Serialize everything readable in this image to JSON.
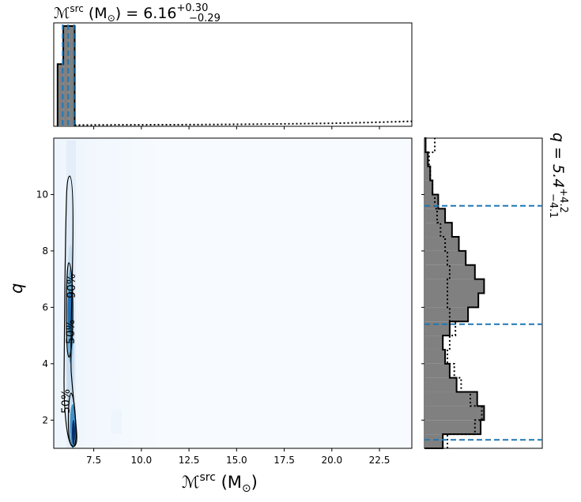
{
  "chart_data": {
    "type": "corner-plot",
    "title_top": {
      "symbol": "ℳ",
      "sup": "src",
      "text": " (M",
      "sub": "⊙",
      "text2": ") = 6.16",
      "sup_err": "+0.30",
      "sub_err": "−0.29"
    },
    "title_right": {
      "text": "q = 5.4",
      "sup_err": "+4.2",
      "sub_err": "−4.1"
    },
    "xlabel": {
      "symbol": "ℳ",
      "sup": "src",
      "text": " (M",
      "sub": "⊙",
      "text2": ")"
    },
    "ylabel": "q",
    "xlim": [
      5.4,
      24.2
    ],
    "ylim": [
      1.0,
      12.0
    ],
    "xticks": [
      {
        "value": 7.5,
        "label": "7.5"
      },
      {
        "value": 10.0,
        "label": "10.0"
      },
      {
        "value": 12.5,
        "label": "12.5"
      },
      {
        "value": 15.0,
        "label": "15.0"
      },
      {
        "value": 17.5,
        "label": "17.5"
      },
      {
        "value": 20.0,
        "label": "20.0"
      },
      {
        "value": 22.5,
        "label": "22.5"
      }
    ],
    "yticks": [
      {
        "value": 2,
        "label": "2"
      },
      {
        "value": 4,
        "label": "4"
      },
      {
        "value": 6,
        "label": "6"
      },
      {
        "value": 8,
        "label": "8"
      },
      {
        "value": 10,
        "label": "10"
      }
    ],
    "contour_labels": [
      "90%",
      "50%",
      "50%"
    ],
    "mchirp_quantiles": [
      5.87,
      6.16,
      6.46
    ],
    "q_quantiles": [
      1.3,
      5.4,
      9.6
    ],
    "mchirp_hist": {
      "bins": [
        5.6,
        5.9,
        6.2,
        6.5
      ],
      "filled": [
        0.62,
        1.0,
        1.0
      ],
      "prior_x": [
        6.5,
        8,
        10,
        12,
        14,
        16,
        18,
        20,
        22,
        24.2
      ],
      "prior_y": [
        0.012,
        0.014,
        0.015,
        0.016,
        0.018,
        0.021,
        0.025,
        0.03,
        0.038,
        0.05
      ]
    },
    "q_hist": {
      "posterior": [
        0.16,
        0.49,
        0.52,
        0.46,
        0.28,
        0.22,
        0.18,
        0.16,
        0.22,
        0.38,
        0.47,
        0.52,
        0.44,
        0.36,
        0.3,
        0.24,
        0.18,
        0.12,
        0.07,
        0.05,
        0.03,
        0.01
      ],
      "prior": [
        0.2,
        0.44,
        0.5,
        0.4,
        0.32,
        0.26,
        0.2,
        0.22,
        0.27,
        0.22,
        0.2,
        0.2,
        0.22,
        0.2,
        0.18,
        0.14,
        0.11,
        0.09,
        0.07,
        0.05,
        0.04,
        0.09
      ]
    },
    "colors": {
      "quantile_line": "#1f77b4",
      "hist_fill": "#808080",
      "density_dark": "#08306b",
      "density_light": "#f7fbff"
    },
    "grid": false
  }
}
